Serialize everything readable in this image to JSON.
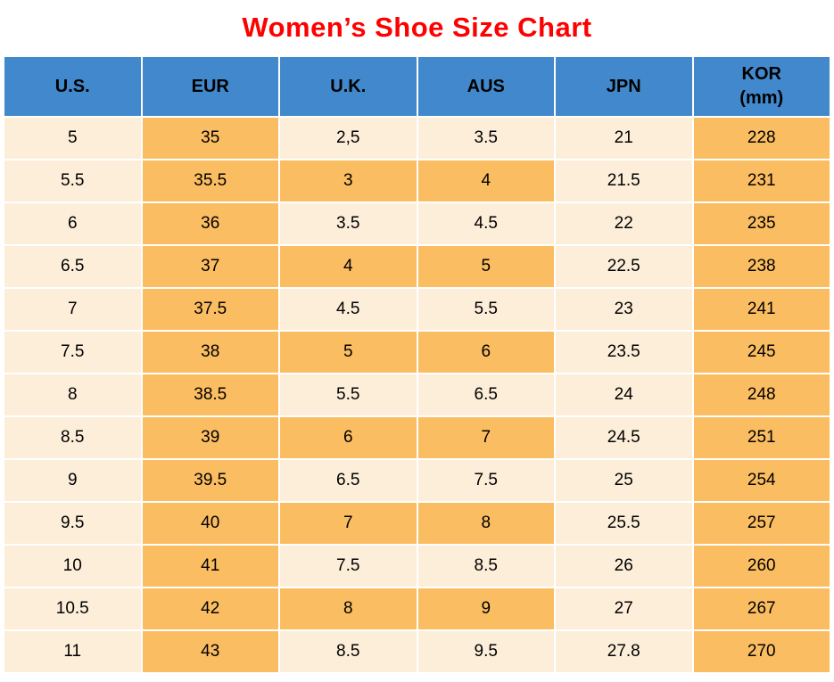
{
  "title": "Women’s Shoe Size Chart",
  "colors": {
    "title_red": "#FF0000",
    "header_blue": "#4189CC",
    "cell_cream": "#FDEEDA",
    "cell_orange": "#FBBD61",
    "grid_line": "#FFFFFF",
    "text": "#000000"
  },
  "table": {
    "header_labels": [
      "U.S.",
      "EUR",
      "U.K.",
      "AUS",
      "JPN",
      "KOR\n(mm)"
    ]
  },
  "chart_data": {
    "type": "table",
    "title": "Women’s Shoe Size Chart",
    "columns": [
      "U.S.",
      "EUR",
      "U.K.",
      "AUS",
      "JPN",
      "KOR (mm)"
    ],
    "rows": [
      [
        "5",
        "35",
        "2,5",
        "3.5",
        "21",
        "228"
      ],
      [
        "5.5",
        "35.5",
        "3",
        "4",
        "21.5",
        "231"
      ],
      [
        "6",
        "36",
        "3.5",
        "4.5",
        "22",
        "235"
      ],
      [
        "6.5",
        "37",
        "4",
        "5",
        "22.5",
        "238"
      ],
      [
        "7",
        "37.5",
        "4.5",
        "5.5",
        "23",
        "241"
      ],
      [
        "7.5",
        "38",
        "5",
        "6",
        "23.5",
        "245"
      ],
      [
        "8",
        "38.5",
        "5.5",
        "6.5",
        "24",
        "248"
      ],
      [
        "8.5",
        "39",
        "6",
        "7",
        "24.5",
        "251"
      ],
      [
        "9",
        "39.5",
        "6.5",
        "7.5",
        "25",
        "254"
      ],
      [
        "9.5",
        "40",
        "7",
        "8",
        "25.5",
        "257"
      ],
      [
        "10",
        "41",
        "7.5",
        "8.5",
        "26",
        "260"
      ],
      [
        "10.5",
        "42",
        "8",
        "9",
        "27",
        "267"
      ],
      [
        "11",
        "43",
        "8.5",
        "9.5",
        "27.8",
        "270"
      ]
    ]
  }
}
